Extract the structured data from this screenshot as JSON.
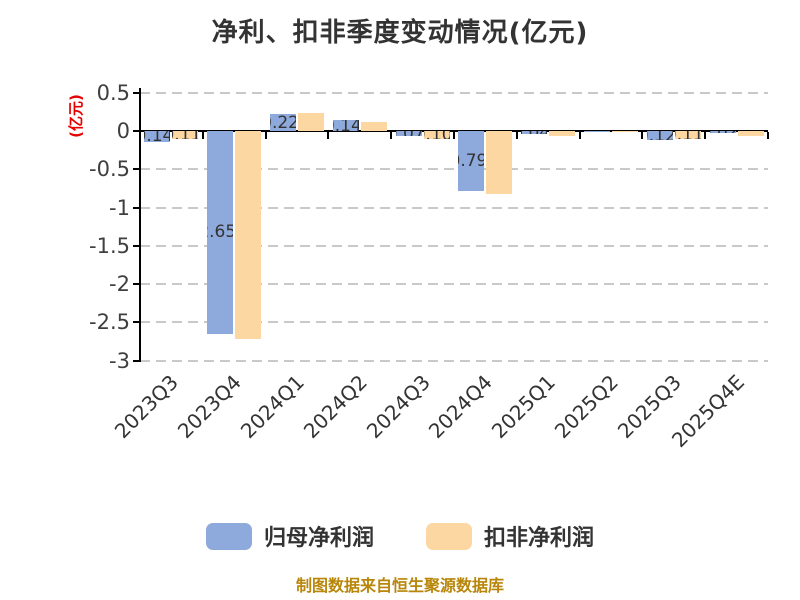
{
  "title": "净利、扣非季度变动情况(亿元)",
  "y_axis_unit_label": "(亿元)",
  "footer": "制图数据来自恒生聚源数据库",
  "colors": {
    "blue_series": "#8EA9DB",
    "orange_series": "#FCD7A1",
    "grid": "#C9C9C9",
    "axis": "#000000",
    "tick_label": "#3F3F3F",
    "title_text": "#333333",
    "y_unit_label": "#E60000",
    "footer_text": "#B8860B",
    "bar_label_text": "#333333"
  },
  "legend": {
    "items": [
      {
        "label": "归母净利润",
        "color_key": "blue_series"
      },
      {
        "label": "扣非净利润",
        "color_key": "orange_series"
      }
    ]
  },
  "chart_data": {
    "type": "bar",
    "title": "净利、扣非季度变动情况(亿元)",
    "xlabel": "",
    "ylabel": "(亿元)",
    "ylim": [
      -3,
      0.5
    ],
    "yticks": [
      0.5,
      0,
      -0.5,
      -1,
      -1.5,
      -2,
      -2.5,
      -3
    ],
    "ytick_labels": [
      "0.5",
      "0",
      "-0.5",
      "-1",
      "-1.5",
      "-2",
      "-2.5",
      "-3"
    ],
    "grid": "dashed-horizontal",
    "legend_position": "bottom",
    "categories": [
      "2023Q3",
      "2023Q4",
      "2024Q1",
      "2024Q2",
      "2024Q3",
      "2024Q4",
      "2025Q1",
      "2025Q2",
      "2025Q3",
      "2025Q4E"
    ],
    "series": [
      {
        "name": "归母净利润",
        "values": [
          -0.14,
          -2.65,
          0.22,
          0.14,
          -0.07,
          -0.79,
          -0.04,
          -0.01,
          -0.12,
          -0.02
        ],
        "visible_labels": [
          "-0.14",
          "-2.65",
          "0.22",
          "0.14",
          "-0.07",
          "-0.79",
          "-0.04",
          "",
          "-0.12",
          "-0.02"
        ]
      },
      {
        "name": "扣非净利润",
        "values": [
          -0.11,
          -2.72,
          0.24,
          0.12,
          -0.1,
          -0.82,
          -0.06,
          -0.01,
          -0.11,
          -0.06
        ],
        "visible_labels": [
          "-0.11",
          "",
          "",
          "",
          "-0.10",
          "",
          "",
          "",
          "-0.11",
          ""
        ]
      }
    ]
  }
}
